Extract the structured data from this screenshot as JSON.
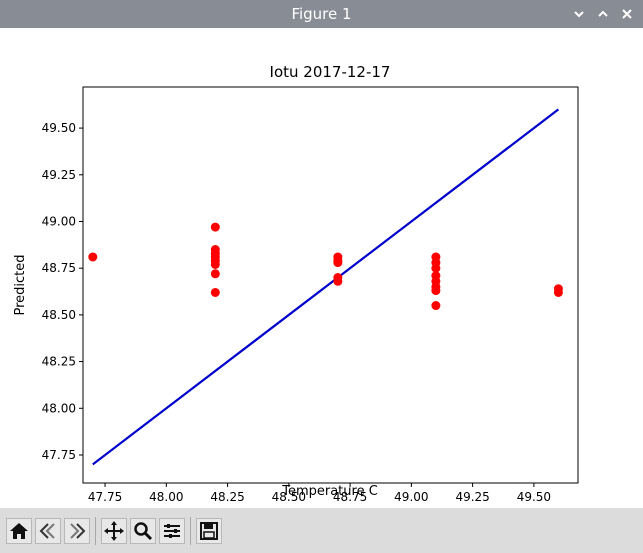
{
  "window": {
    "title": "Figure 1",
    "controls": [
      "chevron-down-icon",
      "chevron-up-icon",
      "close-icon"
    ]
  },
  "toolbar": {
    "buttons": [
      "home-icon",
      "back-icon",
      "forward-icon",
      "pan-icon",
      "zoom-icon",
      "configure-subplots-icon",
      "save-icon"
    ]
  },
  "colors": {
    "titlebar": "#888c94",
    "points": "#ff0000",
    "line": "#0000cc",
    "toolbar": "#dcdcdc"
  },
  "chart_data": {
    "type": "scatter",
    "title": "Iotu 2017-12-17",
    "xlabel": "Temperature C",
    "ylabel": "Predicted",
    "xlim": [
      47.66,
      49.68
    ],
    "ylim": [
      47.6,
      49.72
    ],
    "xticks": [
      "47.75",
      "48.00",
      "48.25",
      "48.50",
      "48.75",
      "49.00",
      "49.25",
      "49.50"
    ],
    "yticks": [
      "47.75",
      "48.00",
      "48.25",
      "48.50",
      "48.75",
      "49.00",
      "49.25",
      "49.50"
    ],
    "grid": false,
    "series": [
      {
        "kind": "points",
        "points": [
          [
            47.7,
            48.81
          ],
          [
            48.2,
            48.97
          ],
          [
            48.2,
            48.85
          ],
          [
            48.2,
            48.83
          ],
          [
            48.2,
            48.81
          ],
          [
            48.2,
            48.79
          ],
          [
            48.2,
            48.77
          ],
          [
            48.2,
            48.72
          ],
          [
            48.2,
            48.62
          ],
          [
            48.7,
            48.81
          ],
          [
            48.7,
            48.79
          ],
          [
            48.7,
            48.78
          ],
          [
            48.7,
            48.7
          ],
          [
            48.7,
            48.68
          ],
          [
            49.1,
            48.81
          ],
          [
            49.1,
            48.78
          ],
          [
            49.1,
            48.75
          ],
          [
            49.1,
            48.71
          ],
          [
            49.1,
            48.68
          ],
          [
            49.1,
            48.65
          ],
          [
            49.1,
            48.63
          ],
          [
            49.1,
            48.55
          ],
          [
            49.6,
            48.64
          ],
          [
            49.6,
            48.62
          ]
        ]
      },
      {
        "kind": "line",
        "points": [
          [
            47.7,
            47.7
          ],
          [
            49.6,
            49.6
          ]
        ]
      }
    ]
  }
}
